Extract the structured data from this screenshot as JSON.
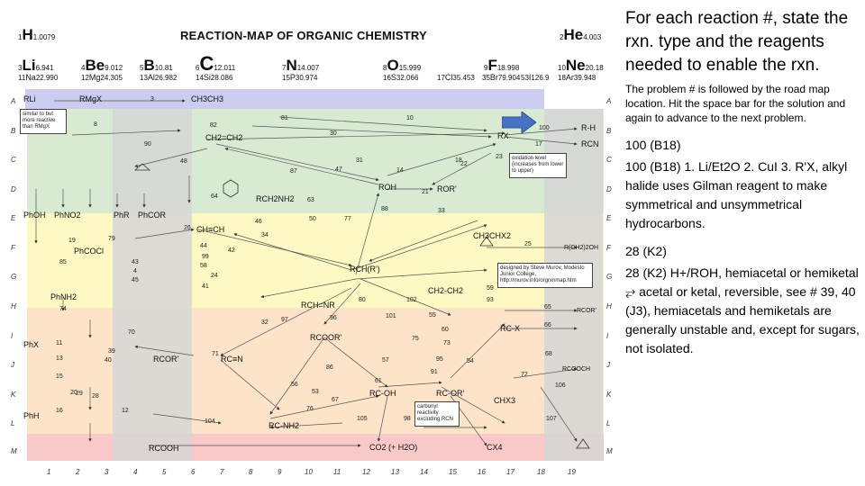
{
  "map": {
    "title": "REACTION-MAP OF ORGANIC CHEMISTRY",
    "elements": [
      {
        "sym": "H",
        "mass": "1.0079",
        "num": "1"
      },
      {
        "sym": "He",
        "mass": "4.003",
        "num": "2"
      },
      {
        "sym": "Li",
        "mass": "6.941",
        "num": "3"
      },
      {
        "sym": "Na",
        "mass": "22.990",
        "num": "11"
      },
      {
        "sym": "Be",
        "mass": "9.012",
        "num": "4"
      },
      {
        "sym": "Mg",
        "mass": "24.305",
        "num": "12"
      },
      {
        "sym": "B",
        "mass": "10.81",
        "num": "5"
      },
      {
        "sym": "Al",
        "mass": "26.982",
        "num": "13"
      },
      {
        "sym": "C",
        "mass": "12.011",
        "num": "6"
      },
      {
        "sym": "Si",
        "mass": "28.086",
        "num": "14"
      },
      {
        "sym": "N",
        "mass": "14.007",
        "num": "7"
      },
      {
        "sym": "P",
        "mass": "30.974",
        "num": "15"
      },
      {
        "sym": "O",
        "mass": "15.999",
        "num": "8"
      },
      {
        "sym": "S",
        "mass": "32.066",
        "num": "16"
      },
      {
        "sym": "F",
        "mass": "18.998",
        "num": "9"
      },
      {
        "sym": "Cl",
        "mass": "35.453",
        "num": "17"
      },
      {
        "sym": "Br",
        "mass": "79.904",
        "num": "35"
      },
      {
        "sym": "I",
        "mass": "126.9",
        "num": "53"
      },
      {
        "sym": "Ne",
        "mass": "20.18",
        "num": "10"
      },
      {
        "sym": "Ar",
        "mass": "39.948",
        "num": "18"
      }
    ],
    "row_labels": [
      "A",
      "B",
      "C",
      "D",
      "E",
      "F",
      "G",
      "H",
      "I",
      "J",
      "K",
      "L",
      "M"
    ],
    "col_labels": [
      "1",
      "2",
      "3",
      "4",
      "5",
      "6",
      "7",
      "8",
      "9",
      "10",
      "11",
      "12",
      "13",
      "14",
      "15",
      "16",
      "17",
      "18",
      "19"
    ],
    "compounds": {
      "rli": "RLi",
      "rmgx": "RMgX",
      "ch3ch3": "CH3CH3",
      "rh": "R-H",
      "ch2ch2": "CH2=CH2",
      "rx": "RX",
      "rr": "R-R'",
      "rcn": "RCN",
      "roh": "ROH",
      "ror": "ROR'",
      "chch": "CH≡CH",
      "rch2nh2": "RCH2NH2",
      "phno2": "PhNO2",
      "phso3h": "PhSO3H",
      "phx": "PhX",
      "phr": "PhR",
      "phcor": "PhCOR",
      "phnh": "PhNH2",
      "phcocl": "PhCOCl",
      "rcho": "RCH(R')",
      "rchnr": "RCH=NR",
      "rcooh": "RCOOH",
      "rcoor": "RCOOR'",
      "rcor": "RCOR'",
      "rcn2": "RC≡N",
      "rcx": "RC-X",
      "rcoh": "RC-OH",
      "rcor2": "RC-OR'",
      "rcnh2": "RC-NH2",
      "chx3": "CHX3",
      "co2": "CO2 (+ H2O)",
      "cx4": "CX4",
      "ch3chx2": "CH3CHX2",
      "ch2ch2b": "CH2-CH2",
      "rch2ch2oh": "R(CH2)2OH",
      "rcorb": "RCOR'",
      "rcooch": "RCOOCH",
      "ph": "PhH",
      "phoh": "PhOH"
    },
    "notes": {
      "similar": "similar to but more reactive than RMgX",
      "oxidation": "oxidation level (increases from lower to upper)",
      "credit": "designed by Steve Murov, Modesto Junior College, http://murov.info/orgrxnmap.htm",
      "carbonyl": "carbonyl reactivity excluding RCN"
    },
    "rxn_numbers": [
      "3",
      "8",
      "81",
      "10",
      "82",
      "30",
      "100",
      "90",
      "31",
      "18",
      "17",
      "87",
      "47",
      "14",
      "22",
      "23",
      "64",
      "63",
      "21",
      "88",
      "33",
      "46",
      "50",
      "77",
      "25",
      "26",
      "44",
      "58",
      "34",
      "97",
      "42",
      "32",
      "96",
      "24",
      "4",
      "40",
      "39",
      "41",
      "102",
      "55",
      "59",
      "60",
      "57",
      "80",
      "75",
      "56",
      "71",
      "73",
      "65",
      "66",
      "91",
      "68",
      "72",
      "95",
      "53",
      "29",
      "67",
      "76",
      "98",
      "104",
      "106",
      "107",
      "12",
      "11",
      "13",
      "15",
      "16",
      "19",
      "20",
      "28",
      "43",
      "45",
      "48",
      "54",
      "61",
      "70",
      "74",
      "79",
      "85",
      "86",
      "93",
      "99",
      "101",
      "105"
    ],
    "blue_arrow_color": "#4472c4",
    "band_colors": {
      "row_a": "#ccccf0",
      "band_green": "#d9ead3",
      "band_yellow": "#fef9c3",
      "band_orange": "#fde4c9",
      "band_pink": "#f9c8c8",
      "gray": "#d6d6d6"
    }
  },
  "panel": {
    "question": "For each reaction #, state the rxn. type and the reagents needed to enable the rxn.",
    "instructions": "The problem # is followed by the road map location.  Hit the space bar for the solution and again to advance to the next problem.",
    "problem1_head": "100  (B18)",
    "problem1_body": "100 (B18)  1. Li/Et2O  2. CuI  3. R'X, alkyl halide uses Gilman reagent to make symmetrical and unsymmetrical hydrocarbons.",
    "problem2_head": "28  (K2)",
    "problem2_body": "28 (K2)  H+/ROH, hemiacetal or hemiketal ⥂ acetal or ketal, reversible, see # 39, 40 (J3), hemiacetals and hemiketals are generally unstable and, except for sugars, not isolated."
  }
}
